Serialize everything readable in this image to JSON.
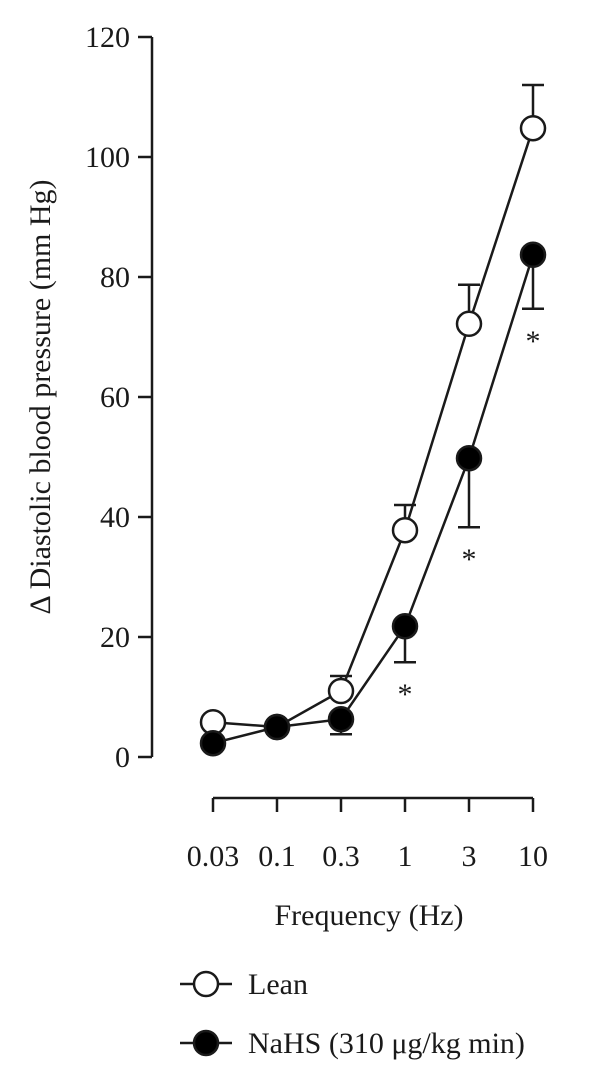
{
  "chart_data": {
    "type": "line",
    "x_categories": [
      "0.03",
      "0.1",
      "0.3",
      "1",
      "3",
      "10"
    ],
    "xlabel": "Frequency (Hz)",
    "ylabel": "Δ Diastolic blood pressure (mm Hg)",
    "ylim": [
      0,
      120
    ],
    "y_ticks": [
      "0",
      "20",
      "40",
      "60",
      "80",
      "100",
      "120"
    ],
    "x_ticks": [
      "0.03",
      "0.1",
      "0.3",
      "1",
      "3",
      "10"
    ],
    "series": [
      {
        "name": "Lean",
        "marker": "open-circle",
        "values": [
          5.8,
          5.0,
          11.0,
          37.8,
          72.2,
          104.8
        ],
        "error_plus": [
          0,
          0,
          2.5,
          4.2,
          6.5,
          7.2
        ],
        "error_minus": [
          0,
          0,
          0,
          0,
          0,
          0
        ]
      },
      {
        "name": "NaHS (310 μg/kg min)",
        "marker": "filled-circle",
        "values": [
          2.3,
          5.0,
          6.3,
          21.8,
          49.8,
          83.7
        ],
        "error_plus": [
          0,
          0,
          0,
          0,
          0,
          0
        ],
        "error_minus": [
          0,
          0,
          2.5,
          6.0,
          11.5,
          9.0
        ]
      }
    ],
    "significance_marks": [
      "",
      "",
      "",
      "*",
      "*",
      "*"
    ],
    "legend_position": "bottom"
  }
}
